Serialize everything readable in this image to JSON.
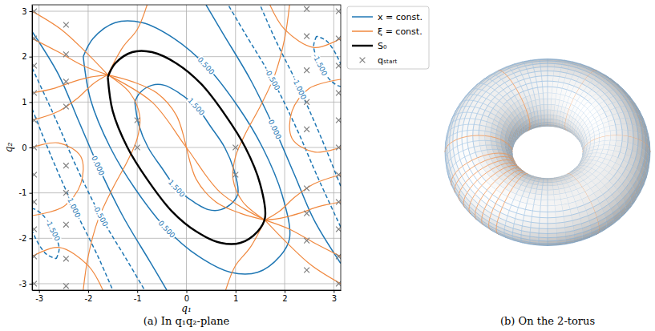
{
  "chart_data": [
    {
      "type": "contour",
      "caption": "(a) In q₁q₂-plane",
      "x_label": "q₁",
      "y_label": "q₂",
      "xlim": [
        -3.1416,
        3.1416
      ],
      "ylim": [
        -3.1416,
        3.1416
      ],
      "xticks": [
        -3,
        -2,
        -1,
        0,
        1,
        2,
        3
      ],
      "yticks": [
        -3,
        -2,
        -1,
        0,
        1,
        2,
        3
      ],
      "grid": true,
      "legend": "right",
      "series": [
        {
          "name": "x = const.",
          "type": "contour",
          "color": "#1f77b4",
          "contours": [
            {
              "level": {
                "value": 1.5,
                "label": "1.500"
              },
              "x": [
                -1.05,
                -0.95,
                -0.7,
                -0.45,
                -0.15,
                0.2,
                0.5,
                0.78,
                0.97,
                1.05,
                0.95,
                0.7,
                0.45,
                0.15,
                -0.2,
                -0.5,
                -0.78,
                -0.97,
                -1.05
              ],
              "y": [
                1.0,
                1.2,
                1.37,
                1.37,
                1.2,
                0.9,
                0.45,
                0.0,
                -0.5,
                -1.0,
                -1.2,
                -1.37,
                -1.37,
                -1.2,
                -0.9,
                -0.45,
                0.0,
                0.5,
                1.0
              ]
            },
            {
              "level": {
                "value": 0.5,
                "label": "0.500"
              },
              "x": [
                -2.1,
                -1.9,
                -1.45,
                -0.9,
                -0.25,
                0.4,
                1.05,
                1.55,
                1.95,
                2.1,
                1.9,
                1.45,
                0.9,
                0.25,
                -0.4,
                -1.05,
                -1.55,
                -1.95,
                -2.1
              ],
              "y": [
                2.0,
                2.4,
                2.75,
                2.75,
                2.4,
                1.8,
                0.9,
                0.0,
                -1.05,
                -2.0,
                -2.4,
                -2.75,
                -2.75,
                -2.4,
                -1.8,
                -0.9,
                0.0,
                1.05,
                2.0
              ]
            },
            {
              "level": {
                "value": 0,
                "label": "0.000"
              },
              "x": [
                -3.14,
                -2.6,
                -2.2,
                -1.8,
                -1.3,
                -0.75,
                -0.4
              ],
              "y": [
                2.55,
                1.6,
                0.6,
                -0.4,
                -1.5,
                -2.5,
                -3.14
              ]
            },
            {
              "level": {
                "value": -0.5,
                "label": "-0.500"
              },
              "x": [
                -3.14,
                -2.65,
                -2.25,
                -1.75,
                -1.2,
                -0.85
              ],
              "y": [
                1.75,
                0.6,
                -0.4,
                -1.5,
                -2.5,
                -3.14
              ]
            },
            {
              "level": {
                "value": -1,
                "label": "-1.000"
              },
              "x": [
                -3.14,
                -2.75,
                -2.3,
                -1.8,
                -1.5
              ],
              "y": [
                0.85,
                -0.2,
                -1.3,
                -2.4,
                -3.14
              ]
            },
            {
              "level": {
                "value": -1.5,
                "label": "-1.500"
              },
              "x": [
                -2.65,
                -2.59,
                -2.72,
                -2.95,
                -3.15,
                -3.21,
                -3.08,
                -2.85,
                -2.65
              ],
              "y": [
                -2.45,
                -2.23,
                -1.82,
                -1.46,
                -1.35,
                -1.57,
                -1.98,
                -2.35,
                -2.45
              ]
            },
            {
              "level": {
                "value": 0,
                "label": "0.000"
              },
              "x": [
                3.14,
                2.6,
                2.2,
                1.8,
                1.3,
                0.75,
                0.4
              ],
              "y": [
                -2.55,
                -1.6,
                -0.6,
                0.4,
                1.5,
                2.5,
                3.14
              ]
            },
            {
              "level": {
                "value": -0.5,
                "label": "-0.500"
              },
              "x": [
                3.14,
                2.65,
                2.25,
                1.75,
                1.2,
                0.85
              ],
              "y": [
                -1.75,
                -0.6,
                0.4,
                1.5,
                2.5,
                3.14
              ]
            },
            {
              "level": {
                "value": -1,
                "label": "-1.000"
              },
              "x": [
                3.14,
                2.75,
                2.3,
                1.8,
                1.5
              ],
              "y": [
                -0.85,
                0.2,
                1.3,
                2.4,
                3.14
              ]
            },
            {
              "level": {
                "value": -1.5,
                "label": "-1.500"
              },
              "x": [
                2.65,
                2.59,
                2.72,
                2.95,
                3.15,
                3.21,
                3.08,
                2.85,
                2.65
              ],
              "y": [
                2.45,
                2.23,
                1.82,
                1.46,
                1.35,
                1.57,
                1.98,
                2.35,
                2.45
              ]
            }
          ]
        },
        {
          "name": "ξ = const.",
          "type": "line",
          "color": "#f0883e",
          "curves": [
            {
              "x": [
                -3.14,
                -2.7,
                -2.3,
                -1.95,
                -1.6
              ],
              "y": [
                1.2,
                1.3,
                1.45,
                1.55,
                1.6
              ]
            },
            {
              "x": [
                -3.14,
                -2.6,
                -2.2,
                -1.9,
                -1.6
              ],
              "y": [
                0.6,
                0.8,
                1.1,
                1.4,
                1.6
              ]
            },
            {
              "x": [
                -3.14,
                -2.6,
                -2.1,
                -1.6
              ],
              "y": [
                2.4,
                2.1,
                1.8,
                1.6
              ]
            },
            {
              "x": [
                -3.14,
                -2.55,
                -2.0,
                -1.6
              ],
              "y": [
                3.0,
                2.6,
                2.05,
                1.6
              ]
            },
            {
              "x": [
                3.14,
                2.7,
                2.3,
                1.95,
                1.6
              ],
              "y": [
                -1.2,
                -1.3,
                -1.45,
                -1.55,
                -1.6
              ]
            },
            {
              "x": [
                3.14,
                2.6,
                2.2,
                1.9,
                1.6
              ],
              "y": [
                -0.6,
                -0.8,
                -1.1,
                -1.4,
                -1.6
              ]
            },
            {
              "x": [
                3.14,
                2.6,
                2.1,
                1.6
              ],
              "y": [
                -2.4,
                -2.1,
                -1.8,
                -1.6
              ]
            },
            {
              "x": [
                3.14,
                2.55,
                2.0,
                1.6
              ],
              "y": [
                -3.0,
                -2.6,
                -2.05,
                -1.6
              ]
            },
            {
              "x": [
                -1.6,
                -1.1,
                -0.6,
                -0.2,
                0.2,
                0.6,
                1.1,
                1.6
              ],
              "y": [
                1.6,
                1.45,
                1.2,
                0.7,
                -0.7,
                -1.2,
                -1.45,
                -1.6
              ]
            },
            {
              "x": [
                -1.6,
                -0.7,
                0.0,
                0.7,
                1.6
              ],
              "y": [
                1.6,
                1.0,
                0.0,
                -1.0,
                -1.6
              ]
            },
            {
              "x": [
                -1.6,
                -1.15,
                -0.95,
                -1.0,
                -1.2,
                -1.5,
                -1.8,
                -2.0,
                -2.1
              ],
              "y": [
                1.6,
                1.2,
                0.7,
                0.2,
                -0.3,
                -0.9,
                -1.6,
                -2.4,
                -3.14
              ]
            },
            {
              "x": [
                1.6,
                1.15,
                0.95,
                1.0,
                1.2,
                1.5,
                1.8,
                2.0,
                2.1
              ],
              "y": [
                -1.6,
                -1.2,
                -0.7,
                -0.2,
                0.3,
                0.9,
                1.6,
                2.4,
                3.14
              ]
            },
            {
              "x": [
                -1.6,
                -1.3,
                -1.0,
                -0.8
              ],
              "y": [
                1.6,
                2.2,
                2.6,
                3.14
              ]
            },
            {
              "x": [
                1.6,
                1.3,
                1.0,
                0.8
              ],
              "y": [
                -1.6,
                -2.2,
                -2.6,
                -3.14
              ]
            },
            {
              "x": [
                -3.14,
                -2.6,
                -2.15,
                -2.15,
                -2.5,
                -3.14
              ],
              "y": [
                0.0,
                0.1,
                -0.2,
                -0.8,
                -1.3,
                -1.5
              ]
            },
            {
              "x": [
                3.14,
                2.6,
                2.15,
                2.15,
                2.5,
                3.14
              ],
              "y": [
                0.0,
                -0.1,
                0.2,
                0.8,
                1.3,
                1.5
              ]
            },
            {
              "x": [
                -3.14,
                -2.6,
                -2.0,
                -1.7
              ],
              "y": [
                -2.4,
                -2.2,
                -2.6,
                -3.14
              ]
            },
            {
              "x": [
                3.14,
                2.6,
                2.0,
                1.7
              ],
              "y": [
                2.4,
                2.2,
                2.6,
                3.14
              ]
            }
          ]
        },
        {
          "name": "S₀",
          "type": "line",
          "color": "#000000",
          "x": [
            -1.6,
            -1.45,
            -1.1,
            -0.7,
            -0.2,
            0.3,
            0.8,
            1.2,
            1.5,
            1.6,
            1.45,
            1.1,
            0.7,
            0.2,
            -0.3,
            -0.8,
            -1.2,
            -1.5,
            -1.6
          ],
          "y": [
            1.55,
            1.85,
            2.1,
            2.1,
            1.85,
            1.4,
            0.7,
            0.0,
            -0.8,
            -1.55,
            -1.85,
            -2.1,
            -2.1,
            -1.85,
            -1.4,
            -0.7,
            0.0,
            0.8,
            1.55
          ]
        },
        {
          "name": "qₛₜₐᵣₜ",
          "type": "scatter",
          "color": "#808080",
          "marker": "x",
          "x": [
            -3.1,
            -3.1,
            -3.1,
            -3.1,
            -3.1,
            -3.1,
            -3.1,
            -3.1,
            -3.1,
            -3.1,
            -3.1,
            3.1,
            3.1,
            3.1,
            3.1,
            3.1,
            3.1,
            3.1,
            3.1,
            3.1,
            3.1,
            3.1,
            -2.45,
            -2.45,
            -2.45,
            -2.45,
            -2.45,
            -2.45,
            -2.45,
            -2.45,
            -2.45,
            2.45,
            2.45,
            2.45,
            2.45,
            2.45,
            2.45,
            2.45,
            2.45,
            2.45,
            -1.0,
            -1.0,
            1.0,
            1.0
          ],
          "y": [
            3.0,
            2.4,
            1.8,
            1.2,
            0.6,
            0.0,
            -0.6,
            -1.2,
            -1.8,
            -2.4,
            -3.0,
            3.0,
            2.4,
            1.8,
            1.2,
            0.6,
            0.0,
            -0.6,
            -1.2,
            -1.8,
            -2.4,
            -3.0,
            2.7,
            2.05,
            1.45,
            0.9,
            -0.4,
            -1.0,
            -1.7,
            -2.45,
            -3.05,
            3.05,
            2.45,
            1.7,
            1.0,
            0.4,
            -0.9,
            -1.45,
            -2.05,
            -2.7,
            0.6,
            0.0,
            0.0,
            -0.6
          ]
        }
      ]
    },
    {
      "type": "torus",
      "caption": "(b) On the 2-torus"
    }
  ]
}
